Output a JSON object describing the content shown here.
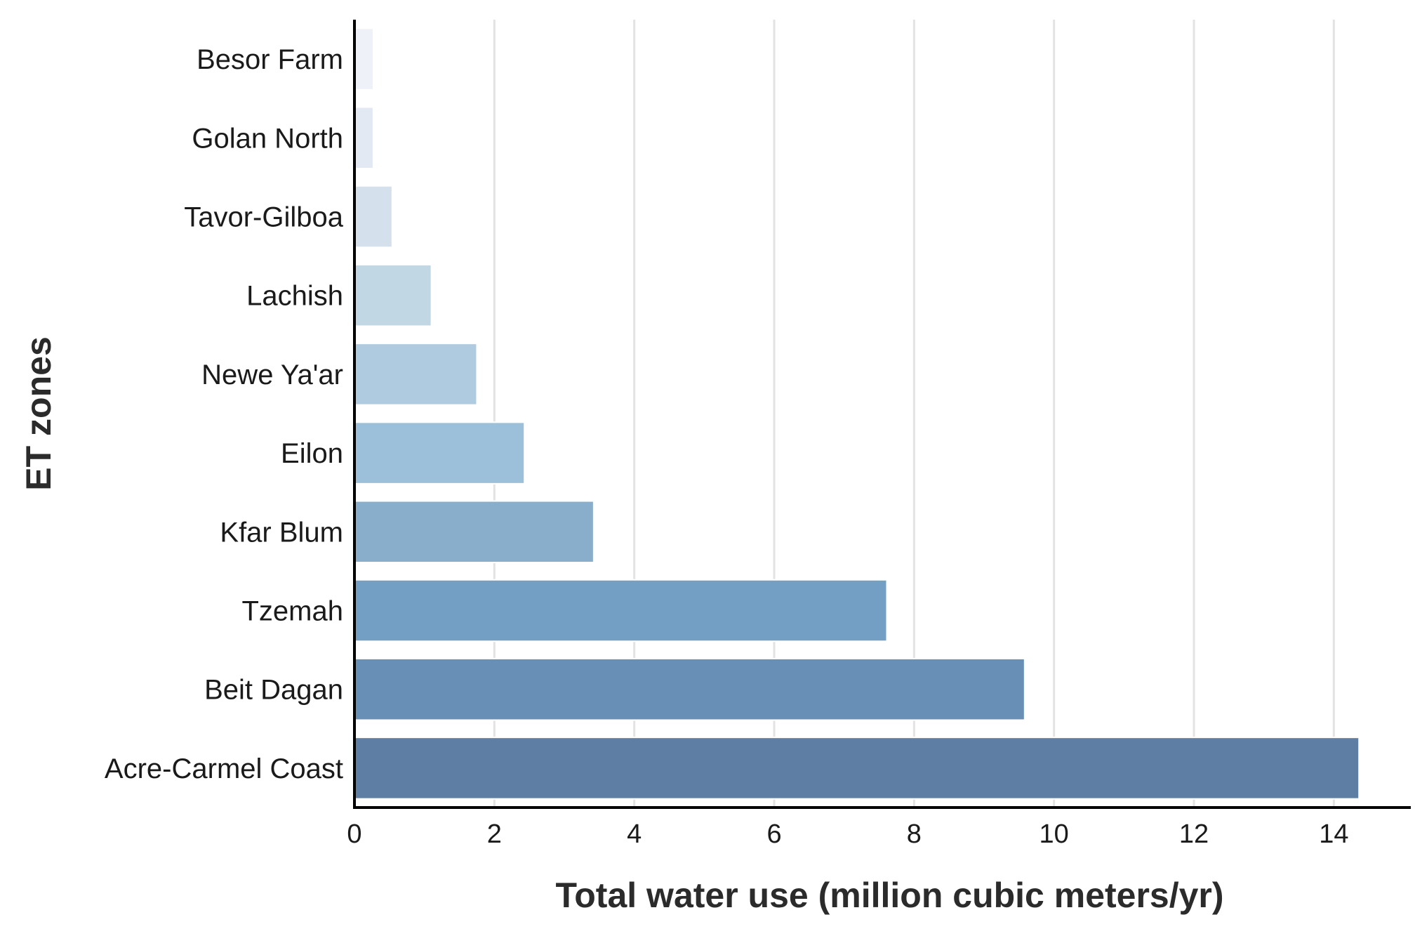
{
  "chart_data": {
    "type": "bar",
    "orientation": "horizontal",
    "categories": [
      "Besor Farm",
      "Golan North",
      "Tavor-Gilboa",
      "Lachish",
      "Newe Ya'ar",
      "Eilon",
      "Kfar Blum",
      "Tzemah",
      "Beit Dagan",
      "Acre-Carmel Coast"
    ],
    "values": [
      0.27,
      0.27,
      0.54,
      1.1,
      1.75,
      2.43,
      3.42,
      7.61,
      9.58,
      14.36
    ],
    "colors": [
      "#eef1f8",
      "#e2e9f2",
      "#d4e0eb",
      "#c2d7e4",
      "#afcbdf",
      "#9cc0d9",
      "#88aecb",
      "#729fc3",
      "#6890b7",
      "#5f7ea3"
    ],
    "xlabel": "Total water use (million cubic meters/yr)",
    "ylabel": "ET zones",
    "xlim": [
      0,
      15.1
    ],
    "xticks": [
      0,
      2,
      4,
      6,
      8,
      10,
      12,
      14
    ],
    "grid": "vertical",
    "legend": "none"
  }
}
